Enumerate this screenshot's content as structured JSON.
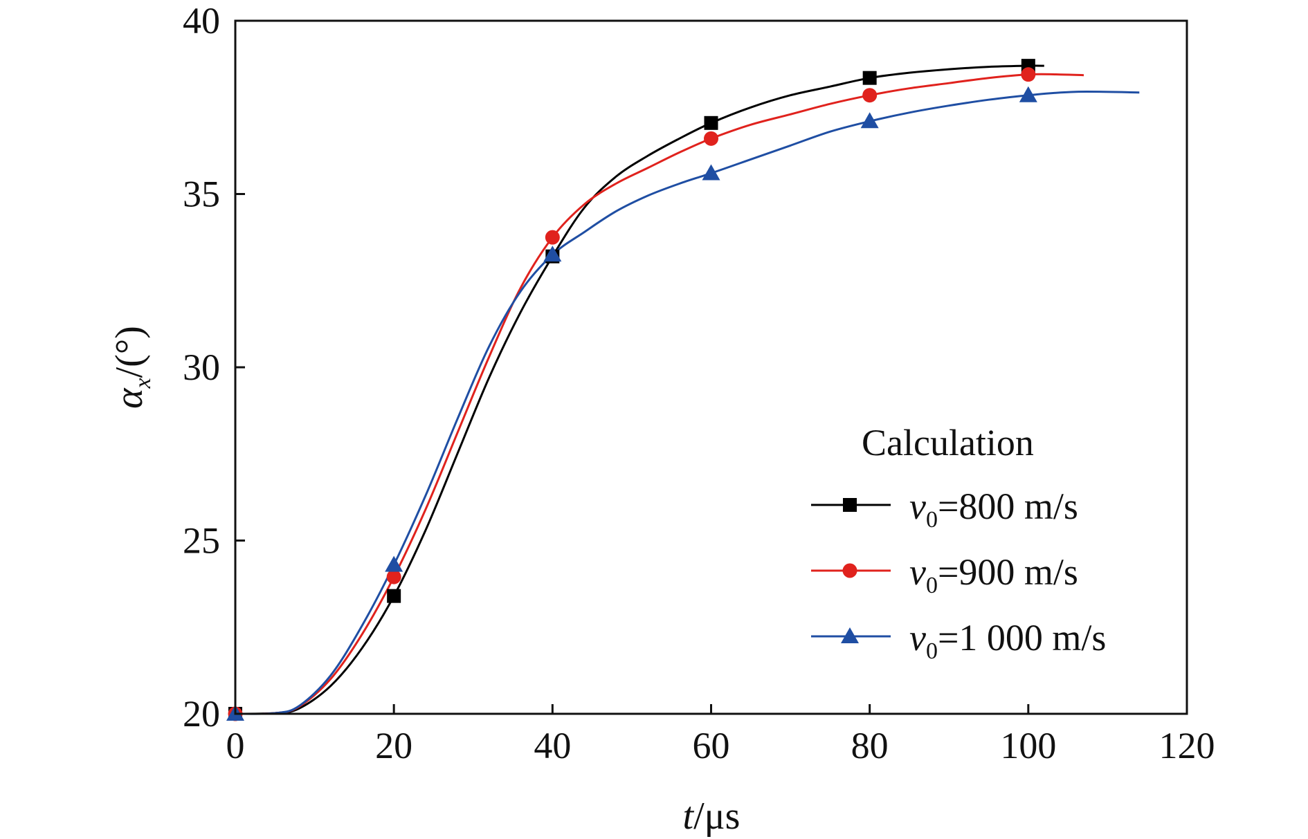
{
  "chart_data": {
    "type": "line",
    "xlabel_var": "t",
    "xlabel_unit": "/μs",
    "ylabel_var": "α",
    "ylabel_sub": "x",
    "ylabel_unit": "/(°)",
    "xlim": [
      0,
      120
    ],
    "ylim": [
      20,
      40
    ],
    "xticks": [
      0,
      20,
      40,
      60,
      80,
      100,
      120
    ],
    "yticks": [
      20,
      25,
      30,
      35,
      40
    ],
    "grid": false,
    "legend": {
      "title": "Calculation",
      "position": "center-right"
    },
    "series": [
      {
        "name_var": "v",
        "name_sub": "0",
        "name_rest": "=800 m/s",
        "color": "#000000",
        "marker": "square",
        "markers": [
          [
            0,
            20.0
          ],
          [
            20,
            23.4
          ],
          [
            40,
            33.2
          ],
          [
            60,
            37.05
          ],
          [
            80,
            38.35
          ],
          [
            100,
            38.7
          ]
        ],
        "curve": [
          [
            0,
            20.0
          ],
          [
            5,
            20.02
          ],
          [
            8,
            20.15
          ],
          [
            12,
            20.8
          ],
          [
            16,
            21.9
          ],
          [
            20,
            23.4
          ],
          [
            24,
            25.3
          ],
          [
            28,
            27.5
          ],
          [
            32,
            29.7
          ],
          [
            36,
            31.6
          ],
          [
            40,
            33.2
          ],
          [
            44,
            34.6
          ],
          [
            48,
            35.5
          ],
          [
            52,
            36.1
          ],
          [
            56,
            36.6
          ],
          [
            60,
            37.05
          ],
          [
            65,
            37.5
          ],
          [
            70,
            37.85
          ],
          [
            75,
            38.1
          ],
          [
            80,
            38.35
          ],
          [
            85,
            38.5
          ],
          [
            90,
            38.6
          ],
          [
            95,
            38.67
          ],
          [
            100,
            38.7
          ],
          [
            102,
            38.7
          ]
        ]
      },
      {
        "name_var": "v",
        "name_sub": "0",
        "name_rest": "=900 m/s",
        "color": "#e0221d",
        "marker": "circle",
        "markers": [
          [
            0,
            20.0
          ],
          [
            20,
            23.95
          ],
          [
            40,
            33.75
          ],
          [
            60,
            36.6
          ],
          [
            80,
            37.85
          ],
          [
            100,
            38.45
          ]
        ],
        "curve": [
          [
            0,
            20.0
          ],
          [
            5,
            20.02
          ],
          [
            8,
            20.2
          ],
          [
            12,
            21.0
          ],
          [
            16,
            22.3
          ],
          [
            20,
            23.95
          ],
          [
            24,
            25.9
          ],
          [
            28,
            28.1
          ],
          [
            32,
            30.3
          ],
          [
            36,
            32.3
          ],
          [
            40,
            33.75
          ],
          [
            44,
            34.7
          ],
          [
            48,
            35.3
          ],
          [
            52,
            35.75
          ],
          [
            56,
            36.2
          ],
          [
            60,
            36.6
          ],
          [
            65,
            37.0
          ],
          [
            70,
            37.3
          ],
          [
            75,
            37.6
          ],
          [
            80,
            37.85
          ],
          [
            85,
            38.05
          ],
          [
            90,
            38.2
          ],
          [
            95,
            38.35
          ],
          [
            100,
            38.45
          ],
          [
            104,
            38.45
          ],
          [
            107,
            38.43
          ]
        ]
      },
      {
        "name_var": "v",
        "name_sub": "0",
        "name_rest": "=1 000 m/s",
        "color": "#1f4ea3",
        "marker": "triangle",
        "markers": [
          [
            0,
            20.0
          ],
          [
            20,
            24.3
          ],
          [
            40,
            33.25
          ],
          [
            60,
            35.6
          ],
          [
            80,
            37.1
          ],
          [
            100,
            37.85
          ]
        ],
        "curve": [
          [
            0,
            20.0
          ],
          [
            5,
            20.02
          ],
          [
            8,
            20.22
          ],
          [
            12,
            21.1
          ],
          [
            16,
            22.55
          ],
          [
            20,
            24.3
          ],
          [
            24,
            26.3
          ],
          [
            28,
            28.5
          ],
          [
            32,
            30.6
          ],
          [
            36,
            32.2
          ],
          [
            40,
            33.25
          ],
          [
            44,
            33.9
          ],
          [
            48,
            34.5
          ],
          [
            52,
            34.95
          ],
          [
            56,
            35.3
          ],
          [
            60,
            35.6
          ],
          [
            65,
            36.0
          ],
          [
            70,
            36.4
          ],
          [
            75,
            36.8
          ],
          [
            80,
            37.1
          ],
          [
            85,
            37.35
          ],
          [
            90,
            37.55
          ],
          [
            95,
            37.72
          ],
          [
            100,
            37.85
          ],
          [
            106,
            37.95
          ],
          [
            114,
            37.93
          ]
        ]
      }
    ]
  }
}
